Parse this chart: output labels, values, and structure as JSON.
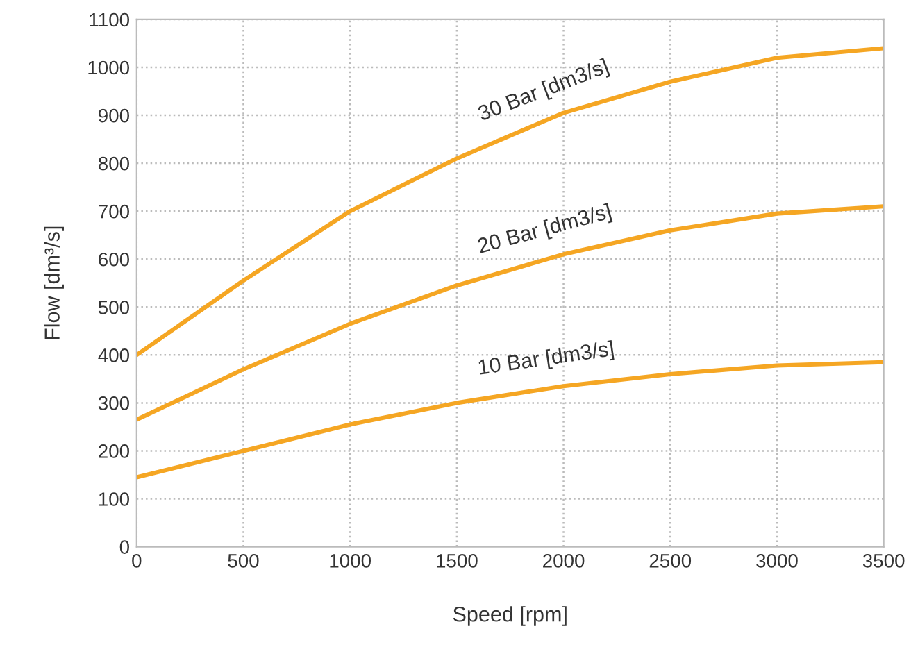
{
  "chart_data": {
    "type": "line",
    "xlabel": "Speed [rpm]",
    "ylabel": "Flow [dm³/s]",
    "x": [
      0,
      500,
      1000,
      1500,
      2000,
      2500,
      3000,
      3500
    ],
    "series": [
      {
        "name": "30 Bar [dm3/s]",
        "color": "#f5a623",
        "values": [
          400,
          555,
          700,
          810,
          905,
          970,
          1020,
          1040
        ]
      },
      {
        "name": "20 Bar [dm3/s]",
        "color": "#f5a623",
        "values": [
          265,
          370,
          465,
          545,
          610,
          660,
          695,
          710
        ]
      },
      {
        "name": "10 Bar [dm3/s]",
        "color": "#f5a623",
        "values": [
          145,
          200,
          255,
          300,
          335,
          360,
          378,
          385
        ]
      }
    ],
    "xlim": [
      0,
      3500
    ],
    "xticks": [
      0,
      500,
      1000,
      1500,
      2000,
      2500,
      3000,
      3500
    ],
    "ylim": [
      0,
      1100
    ],
    "yticks": [
      0,
      100,
      200,
      300,
      400,
      500,
      600,
      700,
      800,
      900,
      1000,
      1100
    ],
    "grid": true,
    "legend": false,
    "marker": "none",
    "line_style": "solid"
  }
}
